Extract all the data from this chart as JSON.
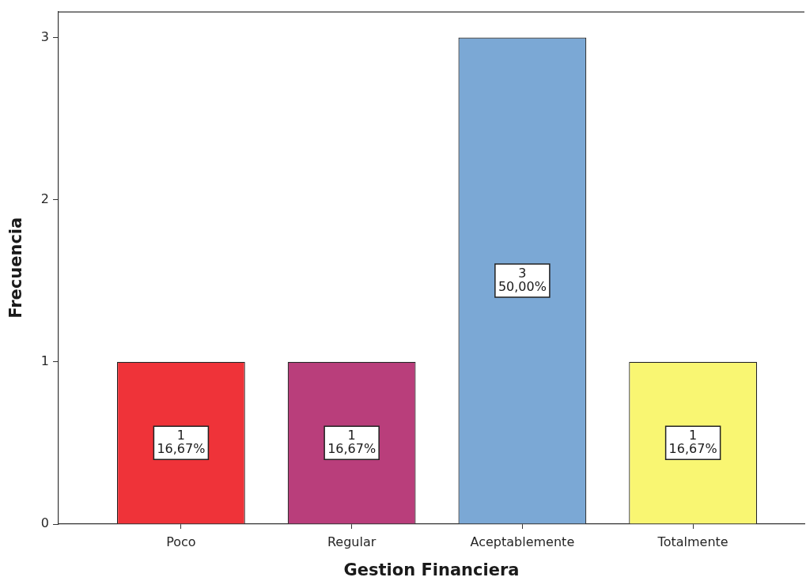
{
  "chart_data": {
    "type": "bar",
    "xlabel": "Gestion Financiera",
    "ylabel": "Frecuencia",
    "categories": [
      "Poco",
      "Regular",
      "Aceptablemente",
      "Totalmente"
    ],
    "values": [
      1,
      1,
      3,
      1
    ],
    "colors": [
      "#ef3339",
      "#b93e7b",
      "#7ba8d5",
      "#f9f672"
    ],
    "value_labels": [
      "1\n16,67%",
      "1\n16,67%",
      "3\n50,00%",
      "1\n16,67%"
    ],
    "ylim": [
      0,
      3.16
    ],
    "yticks": [
      0,
      1,
      2,
      3
    ]
  }
}
